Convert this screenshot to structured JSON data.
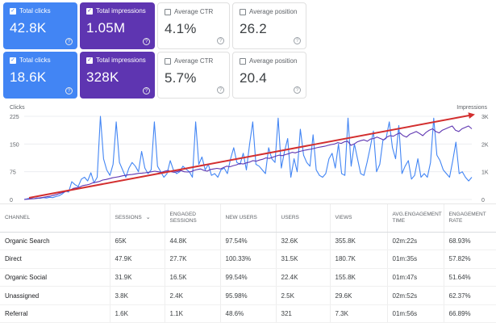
{
  "cards_row1": [
    {
      "label": "Total clicks",
      "value": "42.8K",
      "checked": true
    },
    {
      "label": "Total impressions",
      "value": "1.05M",
      "checked": true
    },
    {
      "label": "Average CTR",
      "value": "4.1%",
      "checked": false
    },
    {
      "label": "Average position",
      "value": "26.2",
      "checked": false
    }
  ],
  "cards_row2": [
    {
      "label": "Total clicks",
      "value": "18.6K",
      "checked": true
    },
    {
      "label": "Total impressions",
      "value": "328K",
      "checked": true
    },
    {
      "label": "Average CTR",
      "value": "5.7%",
      "checked": false
    },
    {
      "label": "Average position",
      "value": "20.4",
      "checked": false
    }
  ],
  "colors": {
    "clicks": "#4285f4",
    "impressions": "#5e35b1",
    "trend_arrow": "#d32f2f"
  },
  "icons": {
    "help": "question-circle-icon",
    "checkbox": "check-icon",
    "sort": "sort-down-icon"
  },
  "chart_data": {
    "type": "line",
    "left_axis_label": "Clicks",
    "right_axis_label": "Impressions",
    "left_ticks": [
      "225",
      "150",
      "75",
      "0"
    ],
    "right_ticks": [
      "3K",
      "2K",
      "1K",
      "0"
    ],
    "left_range": [
      0,
      225
    ],
    "right_range": [
      0,
      3000
    ],
    "grid": true,
    "series": [
      {
        "name": "Clicks",
        "axis": "left",
        "color": "#4285f4",
        "values": [
          0,
          2,
          3,
          2,
          4,
          3,
          5,
          4,
          6,
          5,
          8,
          10,
          15,
          22,
          20,
          48,
          40,
          35,
          55,
          60,
          50,
          72,
          45,
          60,
          225,
          110,
          80,
          65,
          95,
          210,
          100,
          80,
          60,
          85,
          100,
          90,
          75,
          130,
          85,
          70,
          80,
          210,
          90,
          75,
          60,
          70,
          105,
          80,
          70,
          75,
          90,
          82,
          75,
          60,
          210,
          95,
          115,
          80,
          95,
          65,
          70,
          60,
          80,
          85,
          70,
          110,
          140,
          100,
          95,
          125,
          80,
          150,
          210,
          95,
          90,
          80,
          70,
          140,
          110,
          100,
          220,
          85,
          130,
          165,
          60,
          110,
          75,
          190,
          120,
          100,
          90,
          175,
          80,
          65,
          60,
          70,
          110,
          125,
          85,
          150,
          70,
          65,
          220,
          90,
          150,
          110,
          70,
          65,
          100,
          140,
          185,
          75,
          95,
          160,
          165,
          210,
          140,
          110,
          200,
          70,
          90,
          105,
          55,
          65,
          110,
          60,
          70,
          60,
          100,
          220,
          120,
          105,
          80,
          70,
          60,
          105,
          155,
          70,
          75,
          60,
          50,
          60
        ]
      },
      {
        "name": "Impressions",
        "axis": "right",
        "color": "#5e35b1",
        "values": [
          0,
          10,
          20,
          30,
          40,
          60,
          80,
          100,
          120,
          150,
          180,
          220,
          260,
          300,
          330,
          400,
          420,
          450,
          500,
          520,
          550,
          600,
          620,
          650,
          700,
          720,
          750,
          780,
          800,
          820,
          850,
          870,
          890,
          900,
          920,
          940,
          950,
          960,
          980,
          1000,
          1020,
          1000,
          980,
          1020,
          1050,
          1000,
          980,
          1010,
          1040,
          1000,
          990,
          1000,
          1050,
          1080,
          1100,
          1050,
          1020,
          1080,
          1100,
          1120,
          1100,
          1150,
          1200,
          1180,
          1220,
          1250,
          1300,
          1280,
          1320,
          1350,
          1400,
          1380,
          1420,
          1450,
          1500,
          1480,
          1520,
          1560,
          1600,
          1580,
          1620,
          1650,
          1700,
          1680,
          1720,
          1750,
          1780,
          1800,
          1820,
          1850,
          1880,
          1900,
          1920,
          1950,
          1980,
          2000,
          2050,
          2020,
          2080,
          2100,
          1950,
          2000,
          2080,
          2120,
          2150,
          2100,
          2180,
          2200,
          2250,
          2200,
          2150,
          2250,
          2300,
          2280,
          2350,
          2400,
          2300,
          2250,
          2350,
          2400,
          2450,
          2380,
          2300,
          2420,
          2500,
          2550,
          2450,
          2400,
          2500,
          2550,
          2600,
          2650,
          2500,
          2450,
          2550,
          2600,
          2650,
          2550
        ]
      }
    ],
    "trend_arrow": true
  },
  "table": {
    "headers": [
      "CHANNEL",
      "SESSIONS",
      "ENGAGED SESSIONS",
      "NEW USERS",
      "USERS",
      "VIEWS",
      "AVG.ENGAGEMENT TIME",
      "ENGAGEMENT RATE"
    ],
    "rows": [
      [
        "Organic Search",
        "65K",
        "44.8K",
        "97.54%",
        "32.6K",
        "355.8K",
        "02m:22s",
        "68.93%"
      ],
      [
        "Direct",
        "47.9K",
        "27.7K",
        "100.33%",
        "31.5K",
        "180.7K",
        "01m:35s",
        "57.82%"
      ],
      [
        "Organic Social",
        "31.9K",
        "16.5K",
        "99.54%",
        "22.4K",
        "155.8K",
        "01m:47s",
        "51.64%"
      ],
      [
        "Unassigned",
        "3.8K",
        "2.4K",
        "95.98%",
        "2.5K",
        "29.6K",
        "02m:52s",
        "62.37%"
      ],
      [
        "Referral",
        "1.6K",
        "1.1K",
        "48.6%",
        "321",
        "7.3K",
        "01m:56s",
        "66.89%"
      ]
    ]
  }
}
